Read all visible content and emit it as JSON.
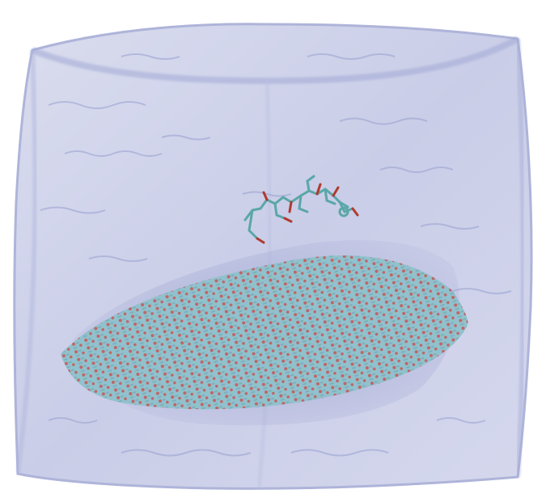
{
  "scene": {
    "colors": {
      "background": "#ffffff",
      "water_box_fill": "#c9cde6",
      "water_box_edge": "#9ea6d6",
      "water_ripple": "#8e97c9",
      "crystal_carbon": "#6fb8b8",
      "crystal_oxygen": "#c0392b",
      "crystal_shadow": "#6b74b0",
      "ligand_carbon": "#5aa7a7",
      "ligand_oxygen": "#b03a2e"
    }
  }
}
